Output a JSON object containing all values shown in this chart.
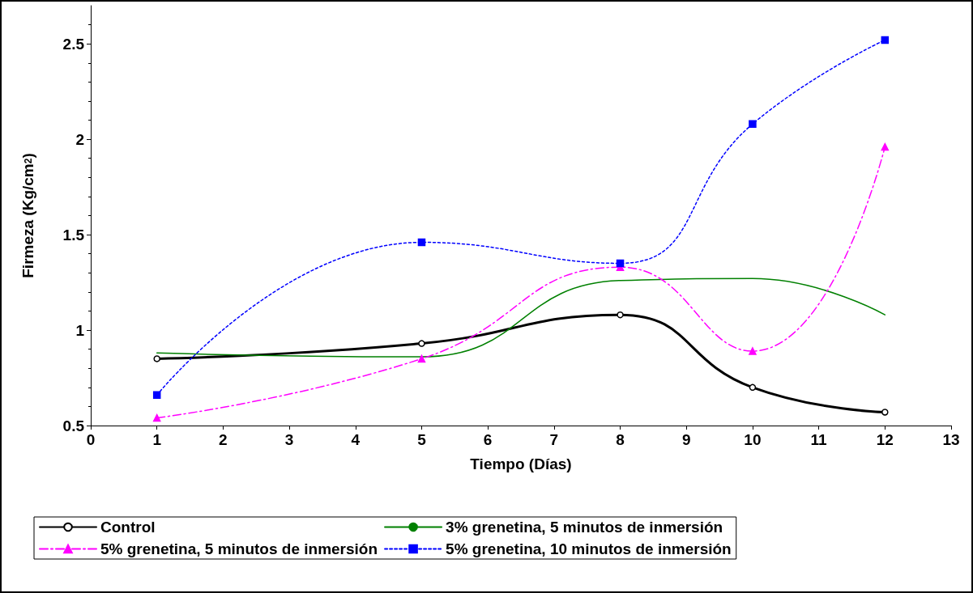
{
  "chart_data": {
    "type": "line",
    "xlabel": "Tiempo (Días)",
    "ylabel": "Firmeza (Kg/cm$^{2}$)",
    "x": [
      1,
      5,
      8,
      10,
      12
    ],
    "xlim": [
      0,
      13
    ],
    "xticks": [
      0,
      1,
      2,
      3,
      4,
      5,
      6,
      7,
      8,
      9,
      10,
      11,
      12,
      13
    ],
    "ylim": [
      0.5,
      2.7
    ],
    "yticks": [
      0.5,
      1,
      1.5,
      2,
      2.5
    ],
    "grid": false,
    "legend": "bottom",
    "series": [
      {
        "name": "Control",
        "color": "#000000",
        "marker": "circle",
        "line_style": "solid",
        "values": [
          0.85,
          0.93,
          1.08,
          0.7,
          0.57
        ]
      },
      {
        "name": "3% grenetina, 5 minutos de inmersión",
        "color": "#008000",
        "marker": "none",
        "line_style": "solid",
        "values": [
          0.88,
          0.86,
          1.26,
          1.27,
          1.08
        ]
      },
      {
        "name": "5% grenetina, 5 minutos de inmersión",
        "color": "#ff00ff",
        "marker": "triangle",
        "line_style": "dashed",
        "values": [
          0.54,
          0.85,
          1.33,
          0.89,
          1.96
        ]
      },
      {
        "name": "5% grenetina, 10 minutos de inmersión",
        "color": "#0000ff",
        "marker": "square",
        "line_style": "dotted",
        "values": [
          0.66,
          1.46,
          1.35,
          2.08,
          2.52
        ]
      }
    ]
  }
}
